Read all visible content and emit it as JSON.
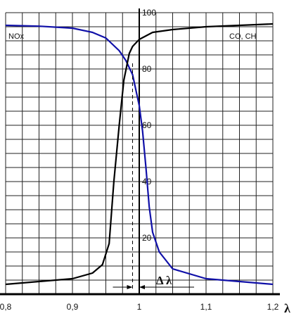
{
  "chart_data": {
    "type": "line",
    "xlabel": "λ",
    "ylabel": "",
    "xlim": [
      0.8,
      1.2
    ],
    "ylim": [
      0,
      100
    ],
    "grid": true,
    "x_ticks": [
      "0,8",
      "0,9",
      "1",
      "1,1",
      "1,2"
    ],
    "y_ticks": [
      "20",
      "40",
      "60",
      "80",
      "100"
    ],
    "series": [
      {
        "name": "NOx",
        "color": "#1010a8",
        "points": [
          [
            0.8,
            95.5
          ],
          [
            0.85,
            95.2
          ],
          [
            0.9,
            94.5
          ],
          [
            0.93,
            93.0
          ],
          [
            0.95,
            91.0
          ],
          [
            0.97,
            86.5
          ],
          [
            0.98,
            83.0
          ],
          [
            0.99,
            78.0
          ],
          [
            1.0,
            67.0
          ],
          [
            1.005,
            58.0
          ],
          [
            1.01,
            45.0
          ],
          [
            1.015,
            31.0
          ],
          [
            1.02,
            22.0
          ],
          [
            1.03,
            15.0
          ],
          [
            1.05,
            9.0
          ],
          [
            1.1,
            5.5
          ],
          [
            1.15,
            4.5
          ],
          [
            1.2,
            3.5
          ]
        ]
      },
      {
        "name": "CO, CH",
        "color": "#000000",
        "points": [
          [
            0.8,
            3.5
          ],
          [
            0.85,
            4.5
          ],
          [
            0.9,
            5.5
          ],
          [
            0.93,
            7.5
          ],
          [
            0.945,
            10.5
          ],
          [
            0.955,
            18.0
          ],
          [
            0.962,
            40.0
          ],
          [
            0.97,
            60.0
          ],
          [
            0.977,
            76.0
          ],
          [
            0.985,
            85.5
          ],
          [
            0.99,
            88.0
          ],
          [
            1.0,
            90.5
          ],
          [
            1.02,
            93.0
          ],
          [
            1.05,
            94.0
          ],
          [
            1.1,
            95.0
          ],
          [
            1.15,
            95.5
          ],
          [
            1.2,
            96.0
          ]
        ]
      }
    ],
    "annotations": {
      "series_label_left": "NOx",
      "series_label_right": "CO, CH",
      "window_text": "Δ λ",
      "window": [
        0.99,
        1.0
      ]
    }
  }
}
